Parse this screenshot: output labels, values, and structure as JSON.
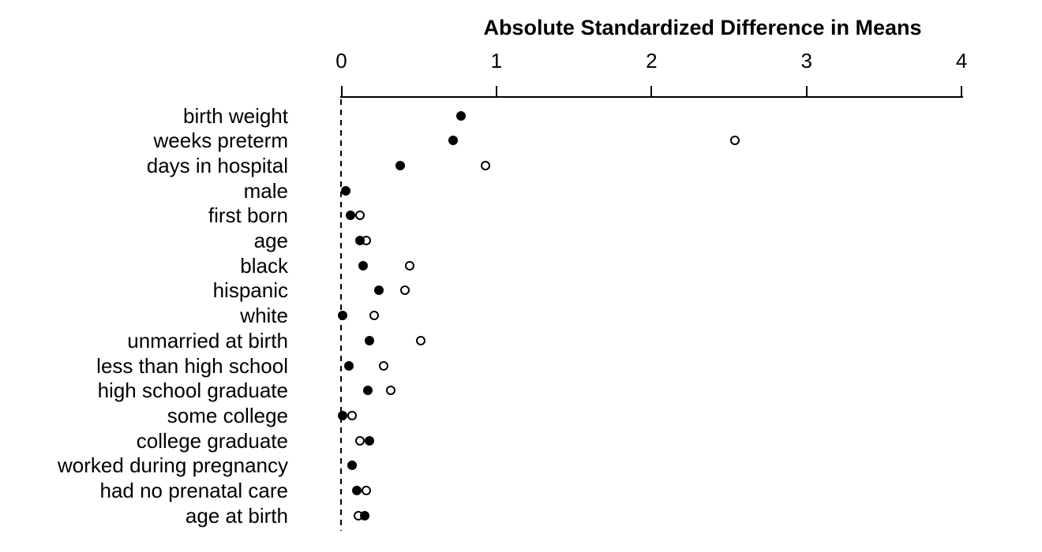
{
  "figure": {
    "background": "#ffffff",
    "foreground": "#000000"
  },
  "chart_data": {
    "type": "scatter",
    "subtype": "horizontal-dot-plot",
    "title": "Absolute Standardized Difference in Means",
    "xlabel": "",
    "ylabel": "",
    "xlim": [
      0,
      4
    ],
    "x_ticks": [
      0,
      1,
      2,
      3,
      4
    ],
    "grid": false,
    "reference_line_x": 0,
    "reference_line_style": "dashed",
    "legend": "none",
    "categories": [
      "birth weight",
      "weeks preterm",
      "days in hospital",
      "male",
      "first born",
      "age",
      "black",
      "hispanic",
      "white",
      "unmarried at birth",
      "less than high school",
      "high school graduate",
      "some college",
      "college graduate",
      "worked during pregnancy",
      "had no prenatal care",
      "age at birth"
    ],
    "series": [
      {
        "name": "filled-circles",
        "marker": "filled-circle",
        "color": "#000000",
        "values": [
          0.77,
          0.72,
          0.38,
          0.03,
          0.06,
          0.12,
          0.14,
          0.24,
          0.01,
          0.18,
          0.05,
          0.17,
          0.01,
          0.18,
          0.07,
          0.1,
          0.15
        ]
      },
      {
        "name": "open-circles",
        "marker": "open-circle",
        "color": "#000000",
        "values": [
          null,
          2.54,
          0.93,
          null,
          0.12,
          0.16,
          0.44,
          0.41,
          0.21,
          0.51,
          0.27,
          0.32,
          0.07,
          0.12,
          null,
          0.16,
          0.11
        ]
      }
    ]
  }
}
